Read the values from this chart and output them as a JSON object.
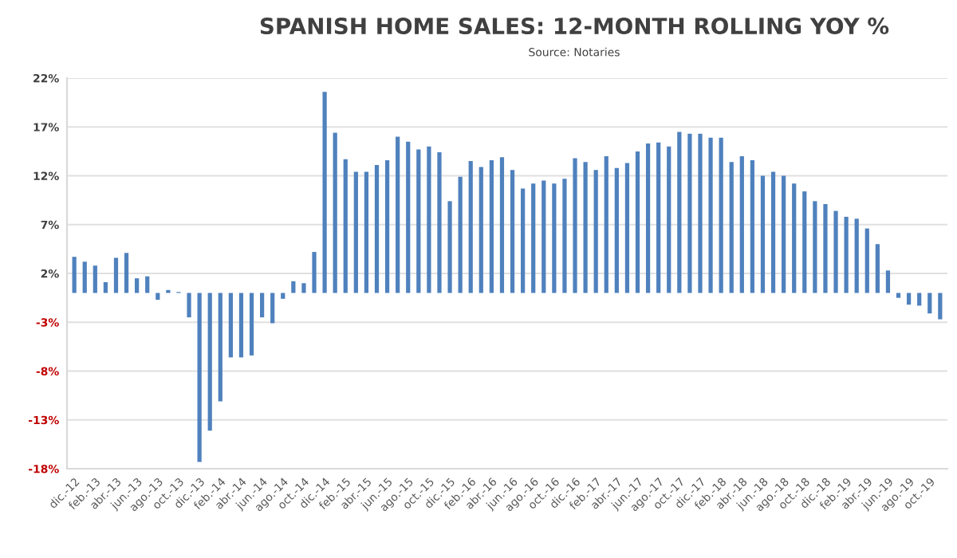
{
  "chart_data": {
    "type": "bar",
    "title": "SPANISH HOME SALES: 12-MONTH ROLLING YOY %",
    "subtitle": "Source: Notaries",
    "categories": [
      "dic.-12",
      null,
      "feb.-13",
      null,
      "abr.-13",
      null,
      "jun.-13",
      null,
      "ago.-13",
      null,
      "oct.-13",
      null,
      "dic.-13",
      null,
      "feb.-14",
      null,
      "abr.-14",
      null,
      "jun.-14",
      null,
      "ago.-14",
      null,
      "oct.-14",
      null,
      "dic.-14",
      null,
      "feb.-15",
      null,
      "abr.-15",
      null,
      "jun.-15",
      null,
      "ago.-15",
      null,
      "oct.-15",
      null,
      "dic.-15",
      null,
      "feb.-16",
      null,
      "abr.-16",
      null,
      "jun.-16",
      null,
      "ago.-16",
      null,
      "oct.-16",
      null,
      "dic.-16",
      null,
      "feb.-17",
      null,
      "abr.-17",
      null,
      "jun.-17",
      null,
      "ago.-17",
      null,
      "oct.-17",
      null,
      "dic.-17",
      null,
      "feb.-18",
      null,
      "abr.-18",
      null,
      "jun.-18",
      null,
      "ago.-18",
      null,
      "oct.-18",
      null,
      "dic.-18",
      null,
      "feb.-19",
      null,
      "abr.-19",
      null,
      "jun.-19",
      null,
      "ago.-19",
      null,
      "oct.-19",
      null
    ],
    "values": [
      3.7,
      3.2,
      2.8,
      1.1,
      3.6,
      4.1,
      1.5,
      1.7,
      -0.7,
      0.3,
      0.1,
      -2.5,
      -17.3,
      -14.1,
      -11.1,
      -6.6,
      -6.6,
      -6.4,
      -2.5,
      -3.1,
      -0.6,
      1.2,
      1.0,
      4.2,
      20.6,
      16.4,
      13.7,
      12.4,
      12.4,
      13.1,
      13.6,
      16.0,
      15.5,
      14.7,
      15.0,
      14.4,
      9.4,
      11.9,
      13.5,
      12.9,
      13.6,
      13.9,
      12.6,
      10.7,
      11.2,
      11.5,
      11.2,
      11.7,
      13.8,
      13.4,
      12.6,
      14.0,
      12.8,
      13.3,
      14.5,
      15.3,
      15.4,
      15.0,
      16.5,
      16.3,
      16.3,
      15.9,
      15.9,
      13.4,
      14.0,
      13.6,
      12.0,
      12.4,
      12.0,
      11.2,
      10.4,
      9.4,
      9.1,
      8.4,
      7.8,
      7.6,
      6.6,
      5.0,
      2.3,
      -0.5,
      -1.2,
      -1.3,
      -2.1,
      -2.7
    ],
    "color": "#4f81bd",
    "ylim": [
      -18,
      22
    ],
    "yticks": [
      {
        "value": -18,
        "label": "-18%"
      },
      {
        "value": -13,
        "label": "-13%"
      },
      {
        "value": -8,
        "label": "-8%"
      },
      {
        "value": -3,
        "label": "-3%"
      },
      {
        "value": 2,
        "label": "2%"
      },
      {
        "value": 7,
        "label": "7%"
      },
      {
        "value": 12,
        "label": "12%"
      },
      {
        "value": 17,
        "label": "17%"
      },
      {
        "value": 22,
        "label": "22%"
      }
    ],
    "grid": "y",
    "legend": false
  }
}
